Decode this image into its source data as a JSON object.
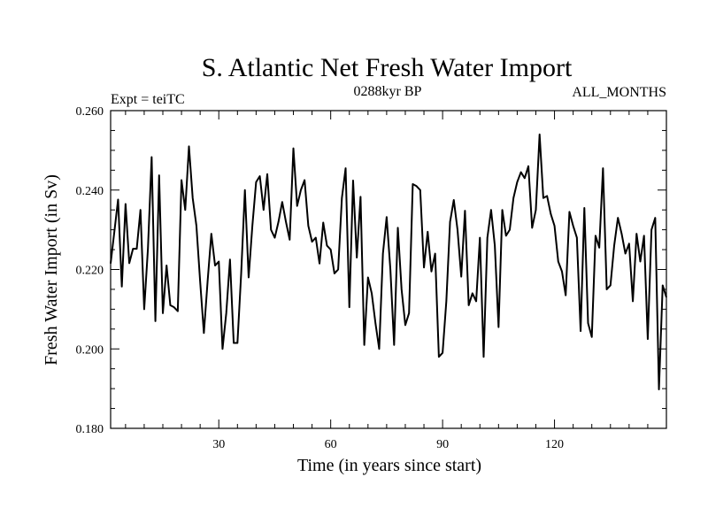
{
  "chart_data": {
    "type": "line",
    "title": "S. Atlantic Net Fresh Water Import",
    "subtitle_left": "Expt = teiTC",
    "subtitle_center": "0288kyr BP",
    "subtitle_right": "ALL_MONTHS",
    "xlabel": "Time (in years since start)",
    "ylabel": "Fresh Water Import (in Sv)",
    "xlim": [
      1,
      150
    ],
    "ylim": [
      0.18,
      0.26
    ],
    "xticks": [
      30,
      60,
      90,
      120
    ],
    "xtick_labels": [
      "30",
      "60",
      "90",
      "120"
    ],
    "yticks": [
      0.18,
      0.2,
      0.22,
      0.24,
      0.26
    ],
    "ytick_labels": [
      "0.180",
      "0.200",
      "0.220",
      "0.240",
      "0.260"
    ],
    "grid": false,
    "series": [
      {
        "name": "Fresh Water Import",
        "x": [
          1,
          2,
          3,
          4,
          5,
          6,
          7,
          8,
          9,
          10,
          11,
          12,
          13,
          14,
          15,
          16,
          17,
          18,
          19,
          20,
          21,
          22,
          23,
          24,
          25,
          26,
          27,
          28,
          29,
          30,
          31,
          32,
          33,
          34,
          35,
          36,
          37,
          38,
          39,
          40,
          41,
          42,
          43,
          44,
          45,
          46,
          47,
          48,
          49,
          50,
          51,
          52,
          53,
          54,
          55,
          56,
          57,
          58,
          59,
          60,
          61,
          62,
          63,
          64,
          65,
          66,
          67,
          68,
          69,
          70,
          71,
          72,
          73,
          74,
          75,
          76,
          77,
          78,
          79,
          80,
          81,
          82,
          83,
          84,
          85,
          86,
          87,
          88,
          89,
          90,
          91,
          92,
          93,
          94,
          95,
          96,
          97,
          98,
          99,
          100,
          101,
          102,
          103,
          104,
          105,
          106,
          107,
          108,
          109,
          110,
          111,
          112,
          113,
          114,
          115,
          116,
          117,
          118,
          119,
          120,
          121,
          122,
          123,
          124,
          125,
          126,
          127,
          128,
          129,
          130,
          131,
          132,
          133,
          134,
          135,
          136,
          137,
          138,
          139,
          140,
          141,
          142,
          143,
          144,
          145,
          146,
          147,
          148,
          149,
          150
        ],
        "values": [
          0.2215,
          0.2295,
          0.2376,
          0.2157,
          0.2365,
          0.2216,
          0.2252,
          0.2252,
          0.235,
          0.21,
          0.2252,
          0.2483,
          0.207,
          0.2437,
          0.209,
          0.221,
          0.211,
          0.2105,
          0.2095,
          0.2425,
          0.235,
          0.251,
          0.238,
          0.231,
          0.217,
          0.204,
          0.217,
          0.229,
          0.221,
          0.222,
          0.2,
          0.209,
          0.2225,
          0.2015,
          0.2015,
          0.219,
          0.24,
          0.218,
          0.231,
          0.242,
          0.2435,
          0.235,
          0.244,
          0.23,
          0.228,
          0.232,
          0.237,
          0.232,
          0.2275,
          0.2505,
          0.236,
          0.24,
          0.2425,
          0.231,
          0.227,
          0.228,
          0.2215,
          0.2318,
          0.226,
          0.225,
          0.219,
          0.22,
          0.238,
          0.2455,
          0.2105,
          0.2424,
          0.223,
          0.2383,
          0.201,
          0.218,
          0.214,
          0.2065,
          0.2,
          0.224,
          0.2332,
          0.22,
          0.201,
          0.2305,
          0.215,
          0.206,
          0.209,
          0.2415,
          0.241,
          0.24,
          0.2205,
          0.2295,
          0.2195,
          0.224,
          0.198,
          0.199,
          0.212,
          0.232,
          0.2375,
          0.23,
          0.2182,
          0.2348,
          0.211,
          0.214,
          0.212,
          0.228,
          0.198,
          0.228,
          0.235,
          0.226,
          0.2055,
          0.235,
          0.2285,
          0.23,
          0.238,
          0.242,
          0.2445,
          0.243,
          0.246,
          0.2305,
          0.235,
          0.254,
          0.238,
          0.2385,
          0.234,
          0.231,
          0.222,
          0.2195,
          0.2135,
          0.2345,
          0.231,
          0.228,
          0.2045,
          0.2355,
          0.2065,
          0.203,
          0.2285,
          0.2255,
          0.2455,
          0.215,
          0.216,
          0.226,
          0.233,
          0.229,
          0.224,
          0.2265,
          0.212,
          0.229,
          0.222,
          0.2285,
          0.2025,
          0.23,
          0.233,
          0.1898,
          0.216,
          0.213
        ]
      }
    ]
  }
}
